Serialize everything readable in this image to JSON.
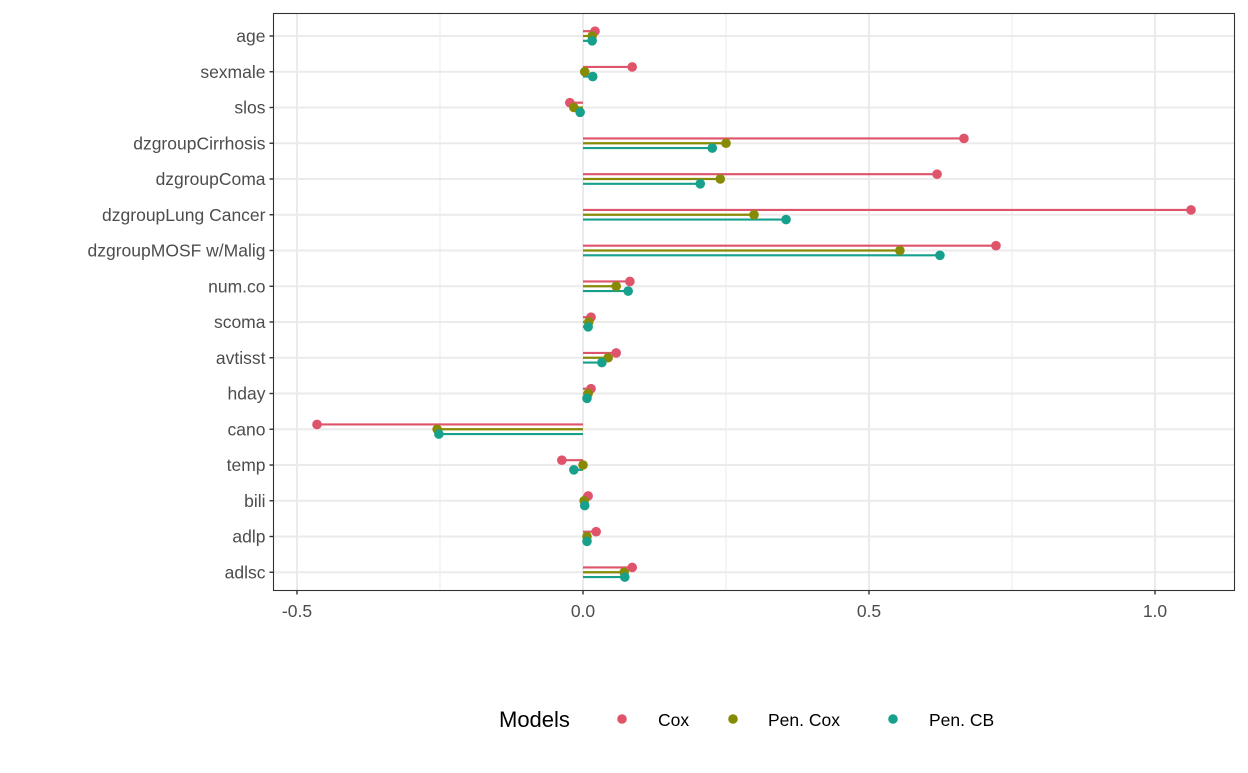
{
  "chart_data": {
    "type": "lollipop-dodged-horizontal",
    "title": "",
    "xlabel": "",
    "ylabel": "",
    "xlim": [
      -0.54,
      1.14
    ],
    "x_ticks": [
      -0.5,
      0.0,
      0.5,
      1.0
    ],
    "x_tick_labels": [
      "-0.5",
      "0.0",
      "0.5",
      "1.0"
    ],
    "grid": true,
    "legend_position": "bottom",
    "legend_title": "Models",
    "categories": [
      "age",
      "sexmale",
      "slos",
      "dzgroupCirrhosis",
      "dzgroupComa",
      "dzgroupLung Cancer",
      "dzgroupMOSF w/Malig",
      "num.co",
      "scoma",
      "avtisst",
      "hday",
      "cano",
      "temp",
      "bili",
      "adlp",
      "adlsc"
    ],
    "series": [
      {
        "name": "Cox",
        "color": "#DF536B",
        "values": [
          0.021,
          0.086,
          -0.023,
          0.666,
          0.619,
          1.063,
          0.722,
          0.082,
          0.014,
          0.058,
          0.014,
          -0.465,
          -0.037,
          0.009,
          0.023,
          0.086
        ]
      },
      {
        "name": "Pen. Cox",
        "color": "#878A05",
        "values": [
          0.016,
          0.003,
          -0.016,
          0.25,
          0.24,
          0.299,
          0.554,
          0.058,
          0.01,
          0.044,
          0.009,
          -0.255,
          0.0,
          0.002,
          0.007,
          0.072
        ]
      },
      {
        "name": "Pen. CB",
        "color": "#17A08C",
        "values": [
          0.016,
          0.017,
          -0.005,
          0.226,
          0.205,
          0.355,
          0.624,
          0.079,
          0.009,
          0.033,
          0.007,
          -0.252,
          -0.016,
          0.003,
          0.007,
          0.073
        ]
      }
    ]
  },
  "legend": {
    "title": "Models",
    "items": [
      {
        "label": "Cox",
        "color": "#DF536B"
      },
      {
        "label": "Pen. Cox",
        "color": "#878A05"
      },
      {
        "label": "Pen. CB",
        "color": "#17A08C"
      }
    ]
  },
  "style": {
    "grid_color": "#EBEBEB",
    "panel_border_color": "#333333",
    "axis_text_color": "#4D4D4D",
    "legend_text_color": "#000000"
  }
}
